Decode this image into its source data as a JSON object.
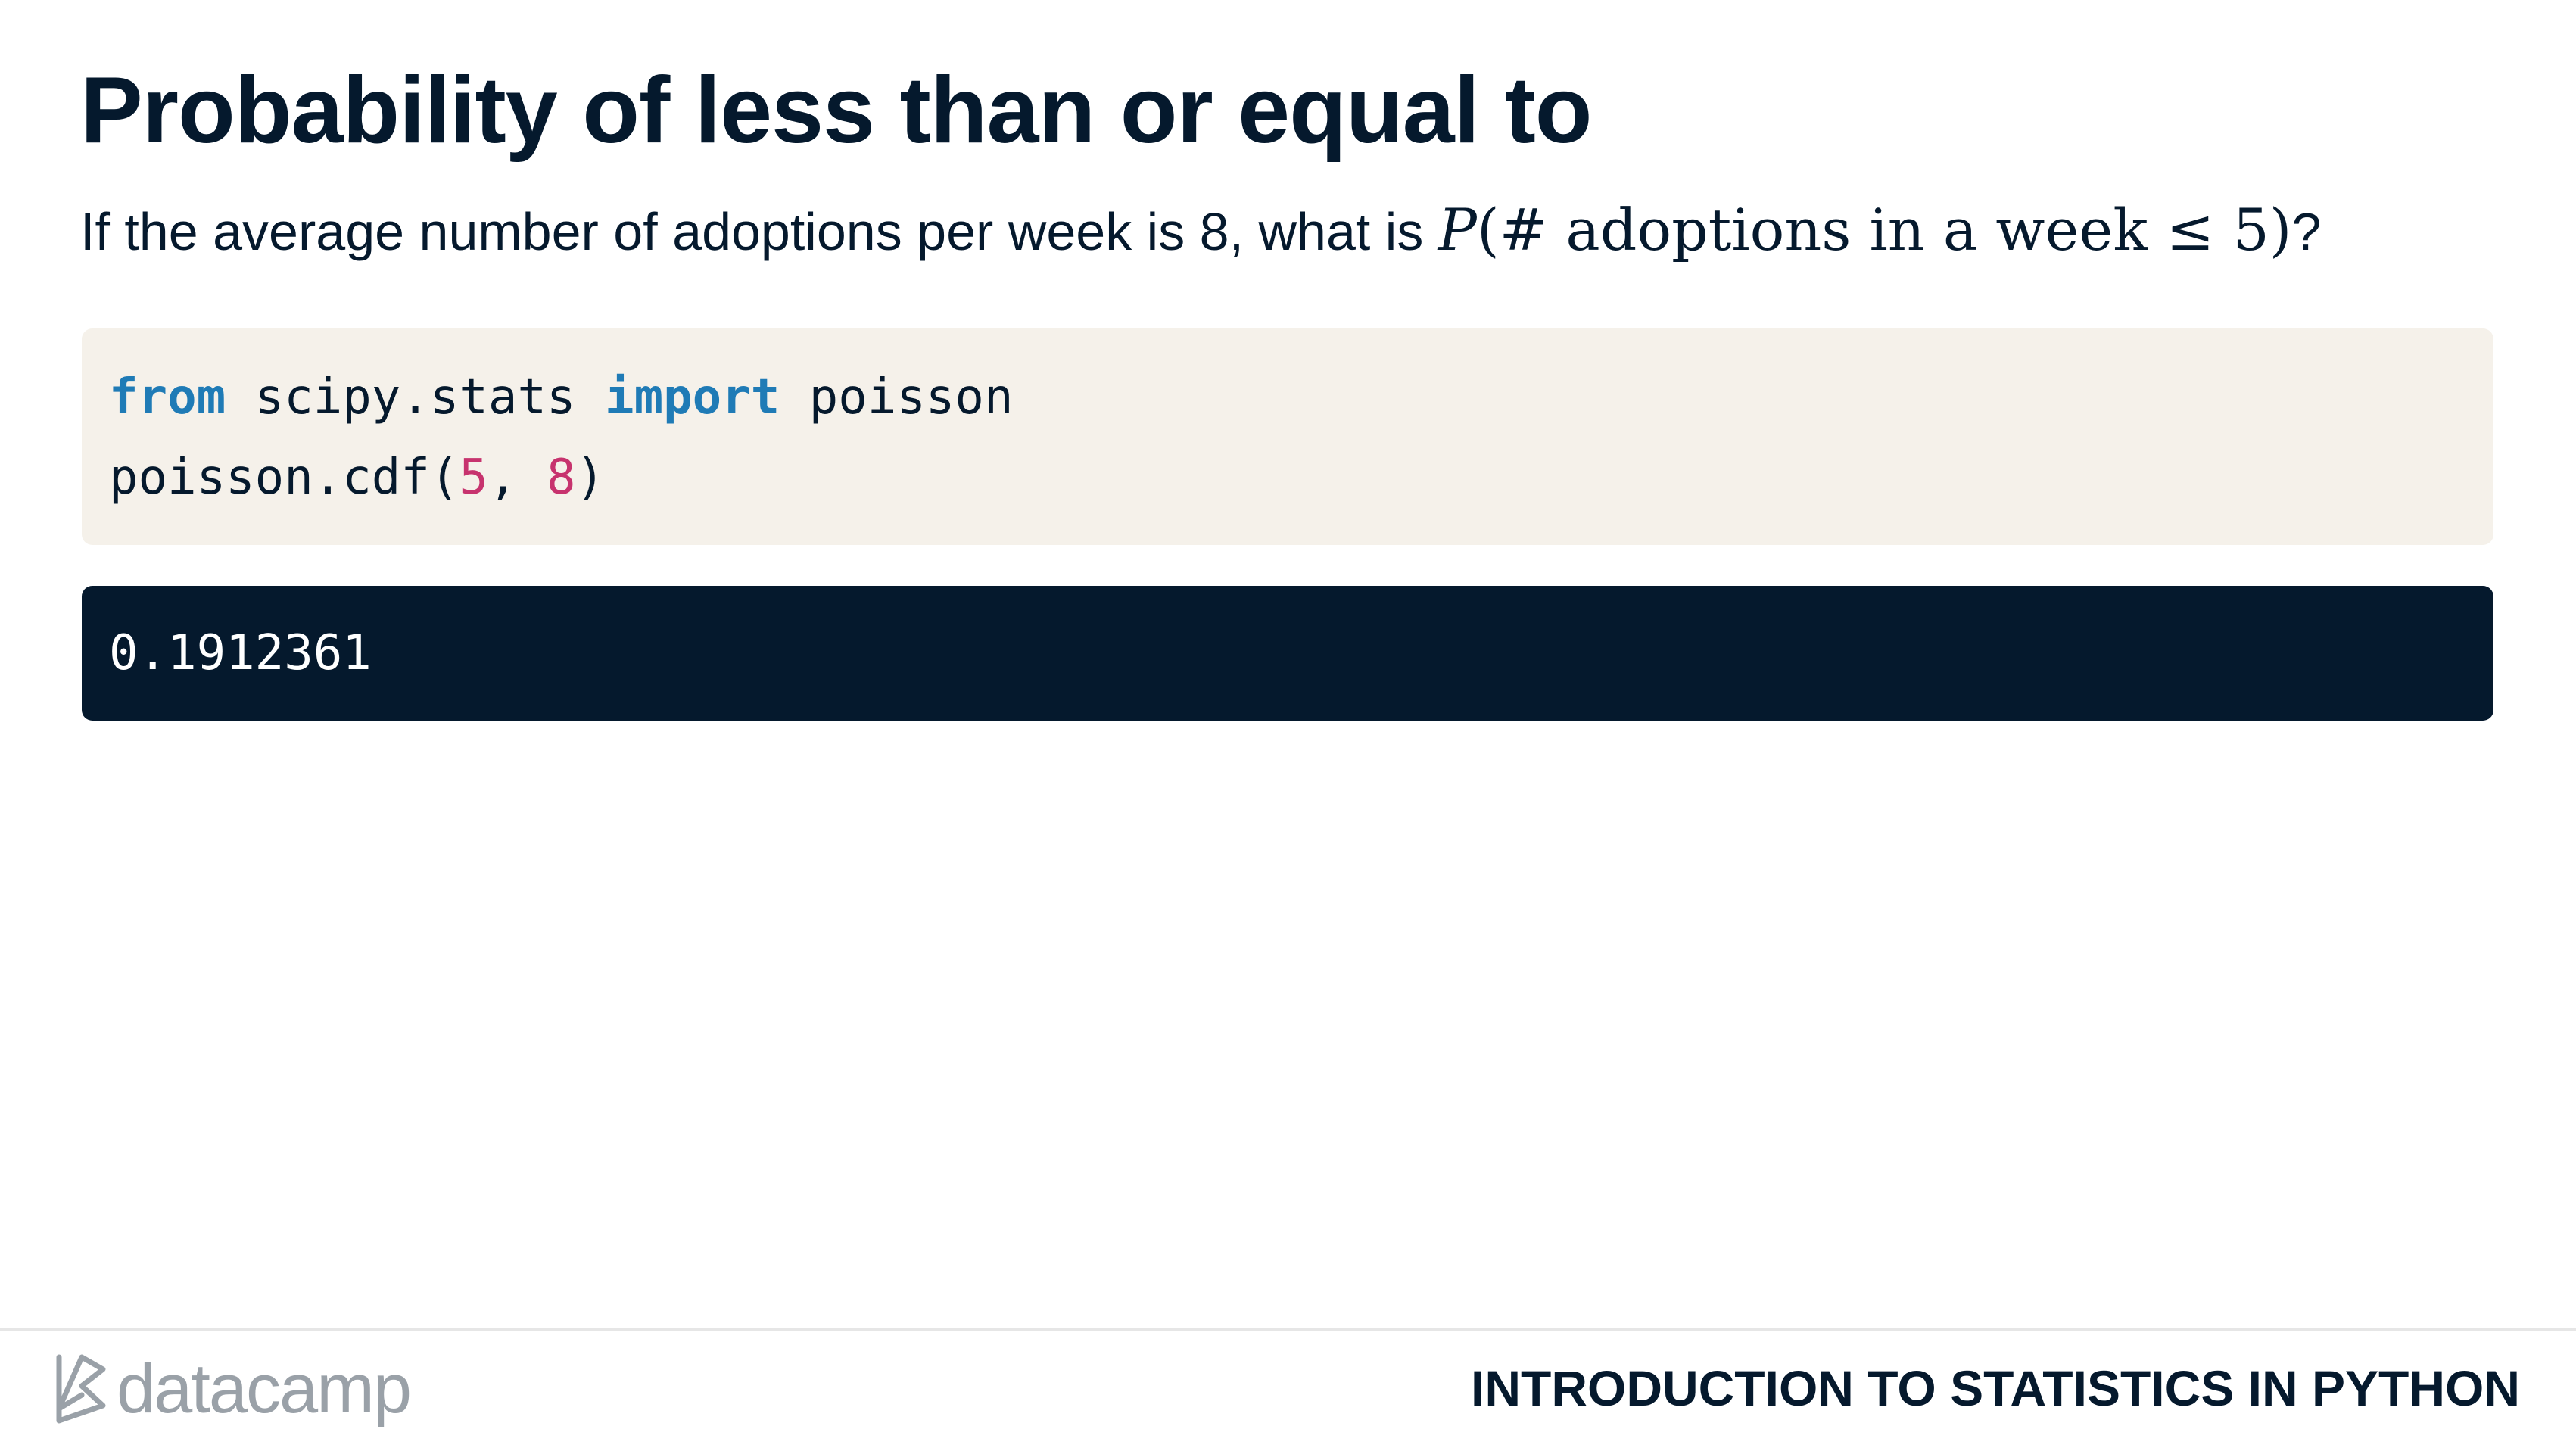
{
  "slide": {
    "title": "Probability of less than or equal to",
    "question_text": "If the average number of adoptions per week is 8, what is ",
    "question_math_var": "P",
    "question_math_expr": "(# adoptions in a week ≤ 5)",
    "question_end": "?"
  },
  "code": {
    "line1": {
      "kw_from": "from",
      "module": " scipy.stats ",
      "kw_import": "import",
      "name": " poisson"
    },
    "line2": {
      "call": "poisson.cdf(",
      "arg1": "5",
      "sep": ", ",
      "arg2": "8",
      "close": ")"
    }
  },
  "output": {
    "value": "0.1912361"
  },
  "footer": {
    "brand_name": "datacamp",
    "course_title": "INTRODUCTION TO STATISTICS IN PYTHON"
  },
  "colors": {
    "text_dark": "#05192d",
    "code_bg": "#f5f1ea",
    "output_bg": "#05192d",
    "keyword": "#1f7bb6",
    "number": "#c7336e",
    "brand_gray": "#9aa1a8"
  },
  "icons": {
    "brand_logo": "datacamp-logo-icon"
  }
}
